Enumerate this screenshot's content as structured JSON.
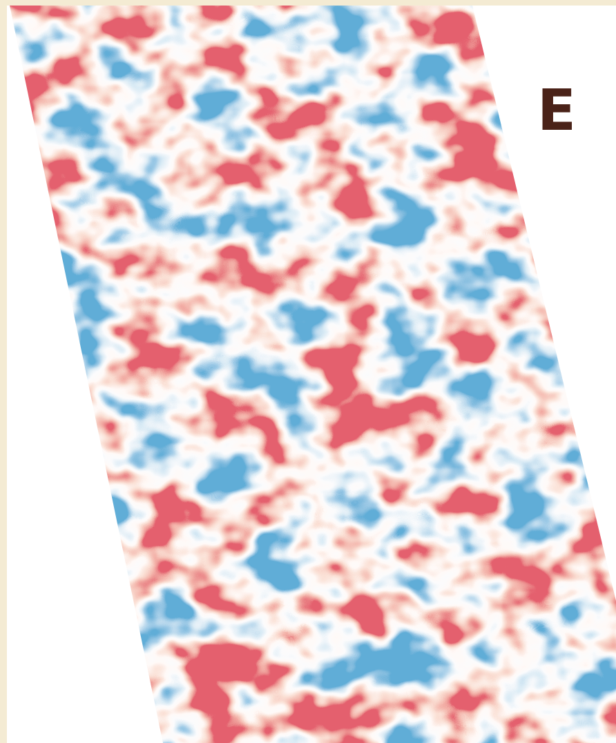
{
  "panel_label": "E"
}
